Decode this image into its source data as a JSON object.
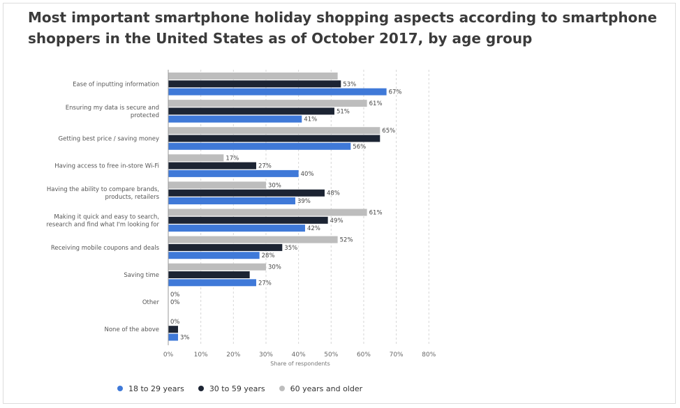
{
  "title": "Most important smartphone holiday shopping aspects according to smartphone shoppers in the United States as of October 2017, by age group",
  "chart_data": {
    "type": "bar",
    "orientation": "horizontal",
    "categories": [
      [
        "Ease of inputting information"
      ],
      [
        "Ensuring my data is secure and",
        "protected"
      ],
      [
        "Getting best price / saving money"
      ],
      [
        "Having access to free in-store Wi-Fi"
      ],
      [
        "Having the ability to compare brands,",
        "products, retailers"
      ],
      [
        "Making it quick and easy to search,",
        "research and find what I'm looking for"
      ],
      [
        "Receiving mobile coupons and deals"
      ],
      [
        "Saving time"
      ],
      [
        "Other"
      ],
      [
        "None of the above"
      ]
    ],
    "series": [
      {
        "name": "60 years and older",
        "color": "#bdbdbd",
        "values": [
          52,
          61,
          65,
          17,
          30,
          61,
          52,
          30,
          0,
          0
        ]
      },
      {
        "name": "30 to 59 years",
        "color": "#1c2433",
        "values": [
          53,
          51,
          65,
          27,
          48,
          49,
          35,
          25,
          0,
          3
        ]
      },
      {
        "name": "18 to 29 years",
        "color": "#3f79d8",
        "values": [
          67,
          41,
          56,
          40,
          39,
          42,
          28,
          27,
          0,
          3
        ]
      }
    ],
    "data_labels": [
      [
        "",
        "53%",
        "67%"
      ],
      [
        "61%",
        "51%",
        "41%"
      ],
      [
        "65%",
        "",
        "56%"
      ],
      [
        "17%",
        "27%",
        "40%"
      ],
      [
        "30%",
        "48%",
        "39%"
      ],
      [
        "61%",
        "49%",
        "42%"
      ],
      [
        "52%",
        "35%",
        "28%"
      ],
      [
        "30%",
        "",
        "27%"
      ],
      [
        "0%",
        "0%",
        ""
      ],
      [
        "0%",
        "",
        "3%"
      ]
    ],
    "xlim": [
      0,
      80
    ],
    "xticks": [
      "0%",
      "10%",
      "20%",
      "30%",
      "40%",
      "50%",
      "60%",
      "70%",
      "80%"
    ],
    "xlabel": "Share of respondents",
    "ylabel": "",
    "grid": "vertical dashed",
    "legend": {
      "placement": "bottom-left",
      "items": [
        {
          "name": "18 to 29 years",
          "color": "#3f79d8"
        },
        {
          "name": "30 to 59 years",
          "color": "#1c2433"
        },
        {
          "name": "60 years and older",
          "color": "#bdbdbd"
        }
      ]
    }
  }
}
